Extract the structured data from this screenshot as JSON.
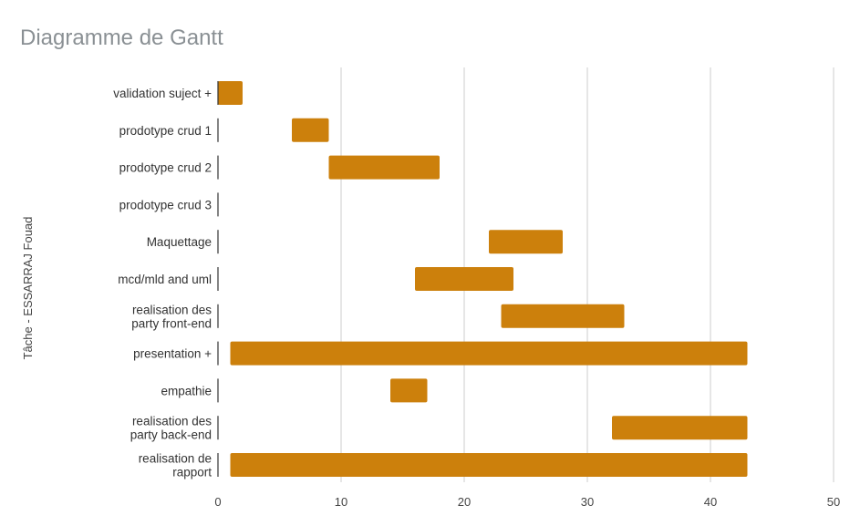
{
  "chart_data": {
    "type": "bar",
    "subtype": "gantt",
    "title": "Diagramme de Gantt",
    "xlabel": "",
    "ylabel": "Tâche - ESSARRAJ Fouad",
    "xlim": [
      0,
      50
    ],
    "xticks": [
      0,
      10,
      20,
      30,
      40,
      50
    ],
    "grid": true,
    "legend": "none",
    "color": "#cc800c",
    "tasks": [
      {
        "label": "validation suject +",
        "start": 0,
        "end": 2
      },
      {
        "label": "prodotype crud 1",
        "start": 6,
        "end": 9
      },
      {
        "label": "prodotype crud 2",
        "start": 9,
        "end": 18
      },
      {
        "label": "prodotype crud 3",
        "start": null,
        "end": null
      },
      {
        "label": "Maquettage",
        "start": 22,
        "end": 28
      },
      {
        "label": "mcd/mld and uml",
        "start": 16,
        "end": 24
      },
      {
        "label": "realisation des party front-end",
        "start": 23,
        "end": 33
      },
      {
        "label": "presentation +",
        "start": 1,
        "end": 43
      },
      {
        "label": "empathie",
        "start": 14,
        "end": 17
      },
      {
        "label": "realisation des party back-end",
        "start": 32,
        "end": 43
      },
      {
        "label": "realisation de rapport",
        "start": 1,
        "end": 43
      }
    ]
  }
}
